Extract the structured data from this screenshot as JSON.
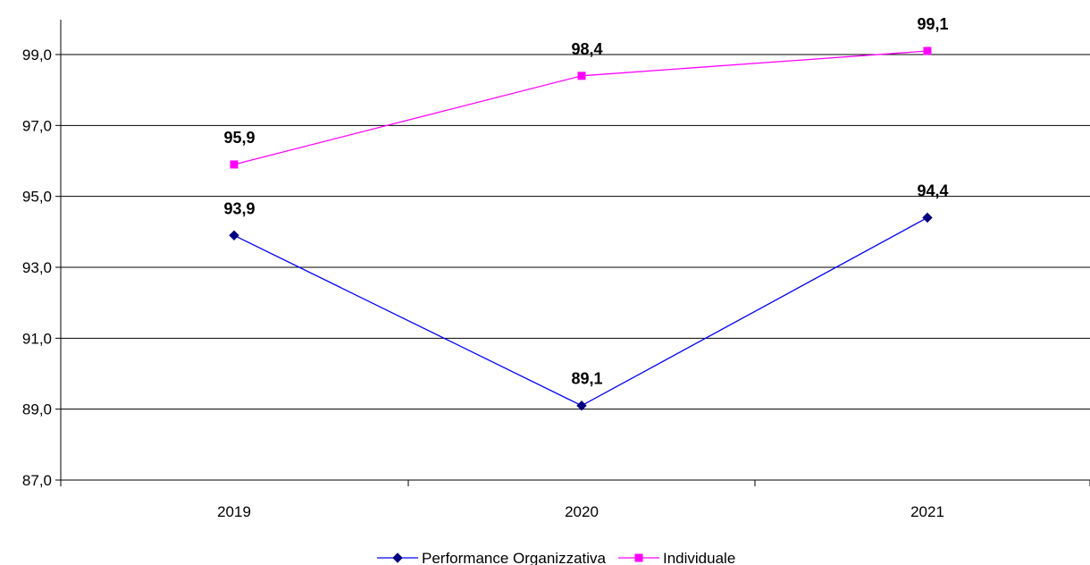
{
  "chart_data": {
    "type": "line",
    "categories": [
      "2019",
      "2020",
      "2021"
    ],
    "series": [
      {
        "name": "Performance Organizzativa",
        "values": [
          93.9,
          89.1,
          94.4
        ],
        "labels": [
          "93,9",
          "89,1",
          "94,4"
        ],
        "color": "#0000FF",
        "marker_color": "#000080",
        "marker": "diamond"
      },
      {
        "name": "Individuale",
        "values": [
          95.9,
          98.4,
          99.1
        ],
        "labels": [
          "95,9",
          "98,4",
          "99,1"
        ],
        "color": "#FF00FF",
        "marker_color": "#FF00FF",
        "marker": "square"
      }
    ],
    "ylim": [
      87.0,
      99.0
    ],
    "yticks": [
      87.0,
      89.0,
      91.0,
      93.0,
      95.0,
      97.0,
      99.0
    ],
    "ytick_labels": [
      "87,0",
      "89,0",
      "91,0",
      "93,0",
      "95,0",
      "97,0",
      "99,0"
    ],
    "title": "",
    "xlabel": "",
    "ylabel": "",
    "grid": "horizontal",
    "legend": "bottom"
  }
}
